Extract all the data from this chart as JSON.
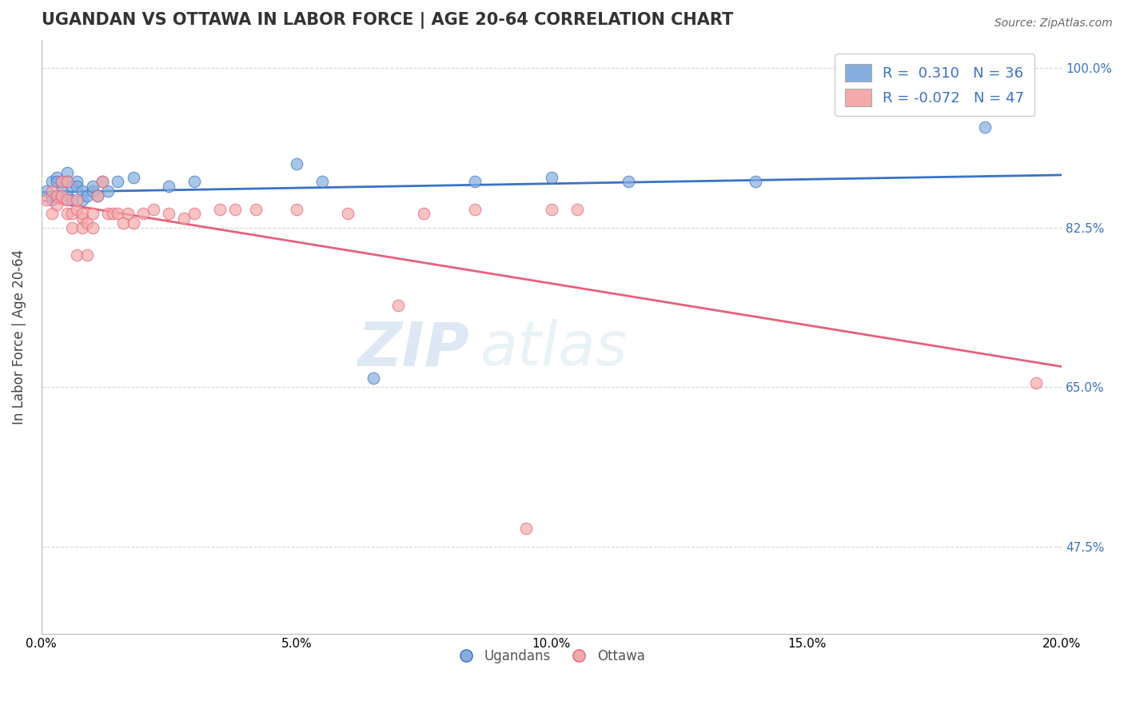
{
  "title": "UGANDAN VS OTTAWA IN LABOR FORCE | AGE 20-64 CORRELATION CHART",
  "source": "Source: ZipAtlas.com",
  "ylabel": "In Labor Force | Age 20-64",
  "xlim": [
    0.0,
    0.2
  ],
  "ylim": [
    0.38,
    1.03
  ],
  "yticks": [
    0.475,
    0.65,
    0.825,
    1.0
  ],
  "ytick_labels": [
    "47.5%",
    "65.0%",
    "82.5%",
    "100.0%"
  ],
  "xticks": [
    0.0,
    0.05,
    0.1,
    0.15,
    0.2
  ],
  "xtick_labels": [
    "0.0%",
    "5.0%",
    "10.0%",
    "15.0%",
    "20.0%"
  ],
  "blue_R": 0.31,
  "blue_N": 36,
  "pink_R": -0.072,
  "pink_N": 47,
  "blue_color": "#85AEDE",
  "pink_color": "#F4AAAA",
  "blue_line_color": "#3A72C8",
  "pink_line_color": "#E8607A",
  "background_color": "#FFFFFF",
  "watermark_left": "ZIP",
  "watermark_right": "atlas",
  "legend_labels": [
    "Ugandans",
    "Ottawa"
  ],
  "blue_x": [
    0.001,
    0.002,
    0.002,
    0.002,
    0.003,
    0.003,
    0.003,
    0.004,
    0.004,
    0.005,
    0.005,
    0.005,
    0.006,
    0.006,
    0.007,
    0.007,
    0.008,
    0.008,
    0.009,
    0.01,
    0.01,
    0.011,
    0.012,
    0.013,
    0.015,
    0.018,
    0.025,
    0.03,
    0.05,
    0.055,
    0.065,
    0.085,
    0.1,
    0.115,
    0.14,
    0.185
  ],
  "blue_y": [
    0.865,
    0.875,
    0.86,
    0.855,
    0.88,
    0.875,
    0.86,
    0.875,
    0.865,
    0.885,
    0.875,
    0.86,
    0.87,
    0.855,
    0.875,
    0.87,
    0.865,
    0.855,
    0.86,
    0.865,
    0.87,
    0.86,
    0.875,
    0.865,
    0.875,
    0.88,
    0.87,
    0.875,
    0.895,
    0.875,
    0.66,
    0.875,
    0.88,
    0.875,
    0.875,
    0.935
  ],
  "pink_x": [
    0.001,
    0.002,
    0.002,
    0.003,
    0.003,
    0.004,
    0.004,
    0.005,
    0.005,
    0.005,
    0.006,
    0.006,
    0.007,
    0.007,
    0.007,
    0.008,
    0.008,
    0.008,
    0.009,
    0.009,
    0.01,
    0.01,
    0.011,
    0.012,
    0.013,
    0.014,
    0.015,
    0.016,
    0.017,
    0.018,
    0.02,
    0.022,
    0.025,
    0.028,
    0.03,
    0.035,
    0.038,
    0.042,
    0.05,
    0.06,
    0.07,
    0.075,
    0.085,
    0.095,
    0.1,
    0.105,
    0.195
  ],
  "pink_y": [
    0.855,
    0.865,
    0.84,
    0.86,
    0.85,
    0.875,
    0.86,
    0.875,
    0.855,
    0.84,
    0.84,
    0.825,
    0.795,
    0.845,
    0.855,
    0.835,
    0.825,
    0.84,
    0.83,
    0.795,
    0.825,
    0.84,
    0.86,
    0.875,
    0.84,
    0.84,
    0.84,
    0.83,
    0.84,
    0.83,
    0.84,
    0.845,
    0.84,
    0.835,
    0.84,
    0.845,
    0.845,
    0.845,
    0.845,
    0.84,
    0.74,
    0.84,
    0.845,
    0.495,
    0.845,
    0.845,
    0.655
  ],
  "grid_color": "#D5D5D5",
  "title_fontsize": 15,
  "axis_label_fontsize": 12,
  "tick_fontsize": 11,
  "source_fontsize": 10
}
